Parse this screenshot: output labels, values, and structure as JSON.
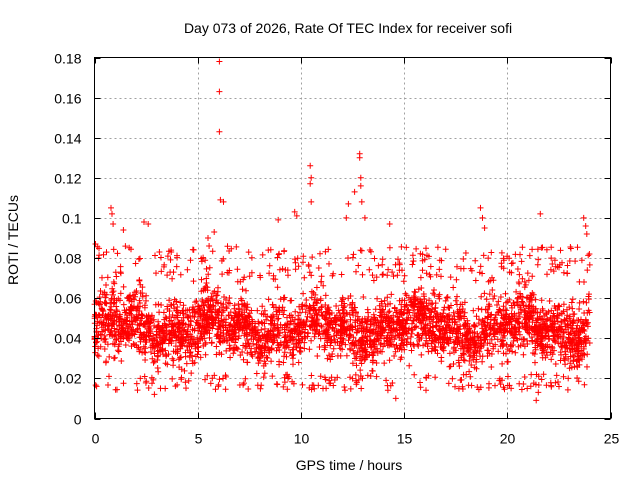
{
  "chart_data": {
    "type": "scatter",
    "title": "Day 073 of 2026, Rate Of TEC Index for receiver sofi",
    "xlabel": "GPS time / hours",
    "ylabel": "ROTI / TECUs",
    "xlim": [
      0,
      25
    ],
    "ylim": [
      0,
      0.18
    ],
    "xticks": [
      0,
      5,
      10,
      15,
      20,
      25
    ],
    "xtick_labels": [
      "0",
      "5",
      "10",
      "15",
      "20",
      "25"
    ],
    "yticks": [
      0,
      0.02,
      0.04,
      0.06,
      0.08,
      0.1,
      0.12,
      0.14,
      0.16,
      0.18
    ],
    "ytick_labels": [
      "0",
      "0.02",
      "0.04",
      "0.06",
      "0.08",
      "0.1",
      "0.12",
      "0.14",
      "0.16",
      "0.18"
    ],
    "grid": true,
    "marker": "+",
    "color": "#ff0000",
    "data_extent": {
      "x_min": 0,
      "x_max": 24
    },
    "series": [
      {
        "name": "ROTI",
        "bulk_band": {
          "typical_low": 0.022,
          "typical_high": 0.068,
          "center": 0.045
        },
        "notable_points": [
          {
            "x": 0.05,
            "y": 0.087
          },
          {
            "x": 0.2,
            "y": 0.08
          },
          {
            "x": 0.1,
            "y": 0.016
          },
          {
            "x": 0.8,
            "y": 0.105
          },
          {
            "x": 0.85,
            "y": 0.102
          },
          {
            "x": 0.9,
            "y": 0.097
          },
          {
            "x": 1.4,
            "y": 0.094
          },
          {
            "x": 2.4,
            "y": 0.098
          },
          {
            "x": 2.6,
            "y": 0.097
          },
          {
            "x": 2.9,
            "y": 0.012
          },
          {
            "x": 3.2,
            "y": 0.015
          },
          {
            "x": 5.5,
            "y": 0.09
          },
          {
            "x": 5.8,
            "y": 0.093
          },
          {
            "x": 6.05,
            "y": 0.178
          },
          {
            "x": 6.05,
            "y": 0.163
          },
          {
            "x": 6.05,
            "y": 0.143
          },
          {
            "x": 6.1,
            "y": 0.109
          },
          {
            "x": 6.25,
            "y": 0.108
          },
          {
            "x": 8.9,
            "y": 0.099
          },
          {
            "x": 9.7,
            "y": 0.103
          },
          {
            "x": 9.8,
            "y": 0.101
          },
          {
            "x": 10.45,
            "y": 0.126
          },
          {
            "x": 10.5,
            "y": 0.12
          },
          {
            "x": 10.45,
            "y": 0.117
          },
          {
            "x": 10.5,
            "y": 0.108
          },
          {
            "x": 12.2,
            "y": 0.1
          },
          {
            "x": 12.3,
            "y": 0.107
          },
          {
            "x": 12.6,
            "y": 0.113
          },
          {
            "x": 12.85,
            "y": 0.132
          },
          {
            "x": 12.85,
            "y": 0.13
          },
          {
            "x": 12.9,
            "y": 0.12
          },
          {
            "x": 12.9,
            "y": 0.116
          },
          {
            "x": 12.95,
            "y": 0.108
          },
          {
            "x": 13.1,
            "y": 0.1
          },
          {
            "x": 14.3,
            "y": 0.097
          },
          {
            "x": 14.6,
            "y": 0.01
          },
          {
            "x": 18.7,
            "y": 0.105
          },
          {
            "x": 18.8,
            "y": 0.1
          },
          {
            "x": 18.9,
            "y": 0.095
          },
          {
            "x": 21.6,
            "y": 0.102
          },
          {
            "x": 21.4,
            "y": 0.009
          },
          {
            "x": 21.5,
            "y": 0.013
          },
          {
            "x": 23.7,
            "y": 0.1
          },
          {
            "x": 23.8,
            "y": 0.096
          },
          {
            "x": 23.85,
            "y": 0.092
          }
        ]
      }
    ]
  }
}
